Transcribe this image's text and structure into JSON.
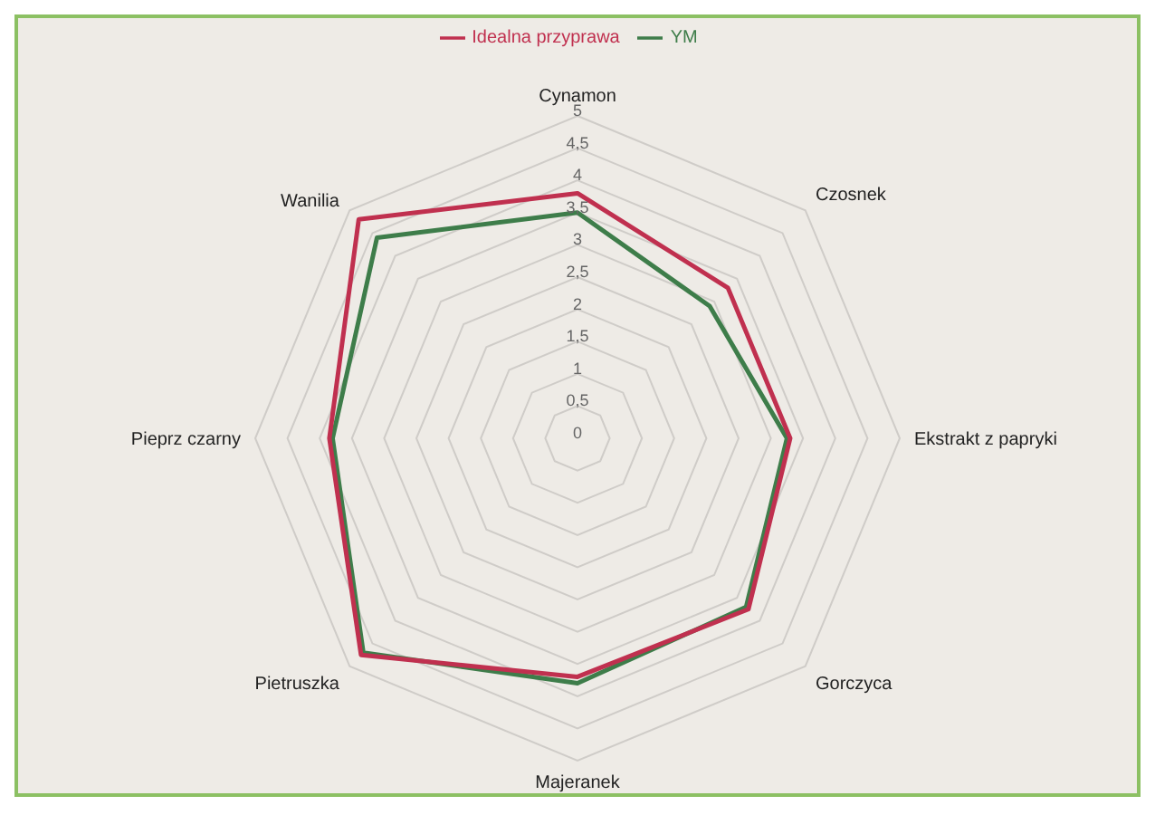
{
  "chart_data": {
    "type": "radar",
    "categories": [
      "Cynamon",
      "Czosnek",
      "Ekstrakt z papryki",
      "Gorczyca",
      "Majeranek",
      "Pietruszka",
      "Pieprz czarny",
      "Wanilia"
    ],
    "series": [
      {
        "name": "YM",
        "color": "#3e7d4a",
        "values": [
          3.5,
          2.9,
          3.25,
          3.7,
          3.8,
          4.7,
          3.8,
          4.4
        ]
      },
      {
        "name": "Idealna przyprawa",
        "color": "#c0304f",
        "values": [
          3.8,
          3.3,
          3.3,
          3.75,
          3.7,
          4.75,
          3.85,
          4.8
        ]
      }
    ],
    "ylim": [
      0,
      5
    ],
    "yticks": [
      0,
      {
        "value": 0.5,
        "label": "0,5"
      },
      1,
      {
        "value": 1.5,
        "label": "1,5"
      },
      2,
      {
        "value": 2.5,
        "label": "2,5"
      },
      3,
      {
        "value": 3.5,
        "label": "3,5"
      },
      4,
      {
        "value": 4.5,
        "label": "4,5"
      },
      5
    ],
    "grid": true,
    "legend": "top",
    "marker": "none",
    "line_style": "solid"
  }
}
